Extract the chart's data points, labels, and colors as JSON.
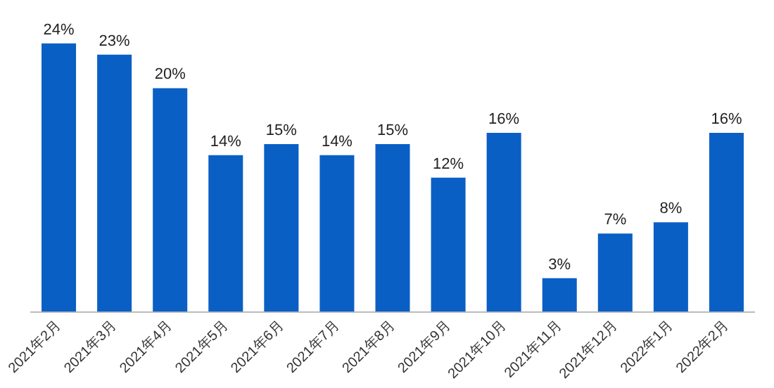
{
  "chart_data": {
    "type": "bar",
    "categories": [
      "2021年2月",
      "2021年3月",
      "2021年4月",
      "2021年5月",
      "2021年6月",
      "2021年7月",
      "2021年8月",
      "2021年9月",
      "2021年10月",
      "2021年11月",
      "2021年12月",
      "2022年1月",
      "2022年2月"
    ],
    "values": [
      24,
      23,
      20,
      14,
      15,
      14,
      15,
      12,
      16,
      3,
      7,
      8,
      16
    ],
    "value_labels": [
      "24%",
      "23%",
      "20%",
      "14%",
      "15%",
      "14%",
      "15%",
      "12%",
      "16%",
      "3%",
      "7%",
      "8%",
      "16%"
    ],
    "color": "#0a5fc4",
    "tick_labels": "x",
    "grid": false,
    "legend": false
  }
}
